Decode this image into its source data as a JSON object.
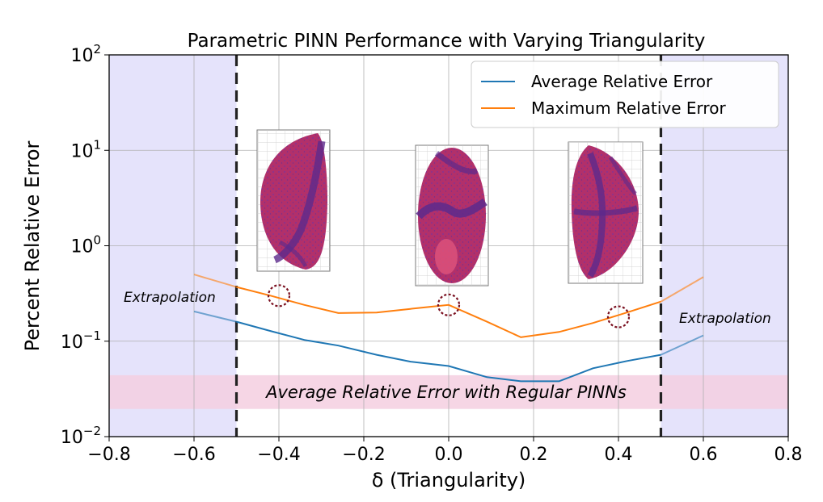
{
  "chart_data": {
    "type": "line",
    "title": "Parametric PINN Performance with Varying Triangularity",
    "xlabel": "δ (Triangularity)",
    "ylabel": "Percent Relative Error",
    "xlim": [
      -0.8,
      0.8
    ],
    "ylim": [
      0.01,
      100
    ],
    "yscale": "log",
    "grid": true,
    "legend_position": "top-right",
    "x_ticks": [
      "−0.8",
      "−0.6",
      "−0.4",
      "−0.2",
      "0.0",
      "0.2",
      "0.4",
      "0.6",
      "0.8"
    ],
    "y_ticks": [
      {
        "base": "10",
        "exp": "2",
        "value": 100
      },
      {
        "base": "10",
        "exp": "1",
        "value": 10
      },
      {
        "base": "10",
        "exp": "0",
        "value": 1
      },
      {
        "base": "10",
        "exp": "−1",
        "value": 0.1
      },
      {
        "base": "10",
        "exp": "−2",
        "value": 0.01
      }
    ],
    "series": [
      {
        "name": "Average Relative Error",
        "color": "#1f77b4",
        "x": [
          -0.6,
          -0.5,
          -0.42,
          -0.34,
          -0.26,
          -0.17,
          -0.09,
          0.0,
          0.09,
          0.17,
          0.26,
          0.34,
          0.42,
          0.5,
          0.6
        ],
        "y": [
          0.205,
          0.16,
          0.128,
          0.103,
          0.09,
          0.072,
          0.061,
          0.055,
          0.042,
          0.038,
          0.038,
          0.052,
          0.062,
          0.072,
          0.115
        ]
      },
      {
        "name": "Maximum Relative Error",
        "color": "#ff7f0e",
        "x": [
          -0.6,
          -0.5,
          -0.42,
          -0.34,
          -0.26,
          -0.17,
          -0.09,
          0.0,
          0.09,
          0.17,
          0.26,
          0.34,
          0.42,
          0.5,
          0.6
        ],
        "y": [
          0.5,
          0.37,
          0.3,
          0.24,
          0.197,
          0.2,
          0.218,
          0.24,
          0.16,
          0.11,
          0.125,
          0.155,
          0.2,
          0.26,
          0.47
        ]
      }
    ],
    "extrapolation_regions": [
      [
        -0.8,
        -0.5
      ],
      [
        0.5,
        0.8
      ]
    ],
    "boundary_lines": [
      -0.5,
      0.5
    ],
    "regular_pinn_band": {
      "ymin": 0.0195,
      "ymax": 0.044
    },
    "circled_points": [
      {
        "x": -0.4,
        "y": 0.3
      },
      {
        "x": 0.0,
        "y": 0.24
      },
      {
        "x": 0.4,
        "y": 0.18
      }
    ],
    "annotations": {
      "extrapolation_left": "Extrapolation",
      "extrapolation_right": "Extrapolation",
      "regular_pinn": "Average Relative Error with Regular PINNs"
    },
    "colors": {
      "extrapolation_fill": "#e5e3fb",
      "regular_band_fill": "#f4cfe0",
      "circle": "#7a1020",
      "mesh_fill": "#b2306a",
      "mesh_band": "#5c2a8c"
    }
  }
}
